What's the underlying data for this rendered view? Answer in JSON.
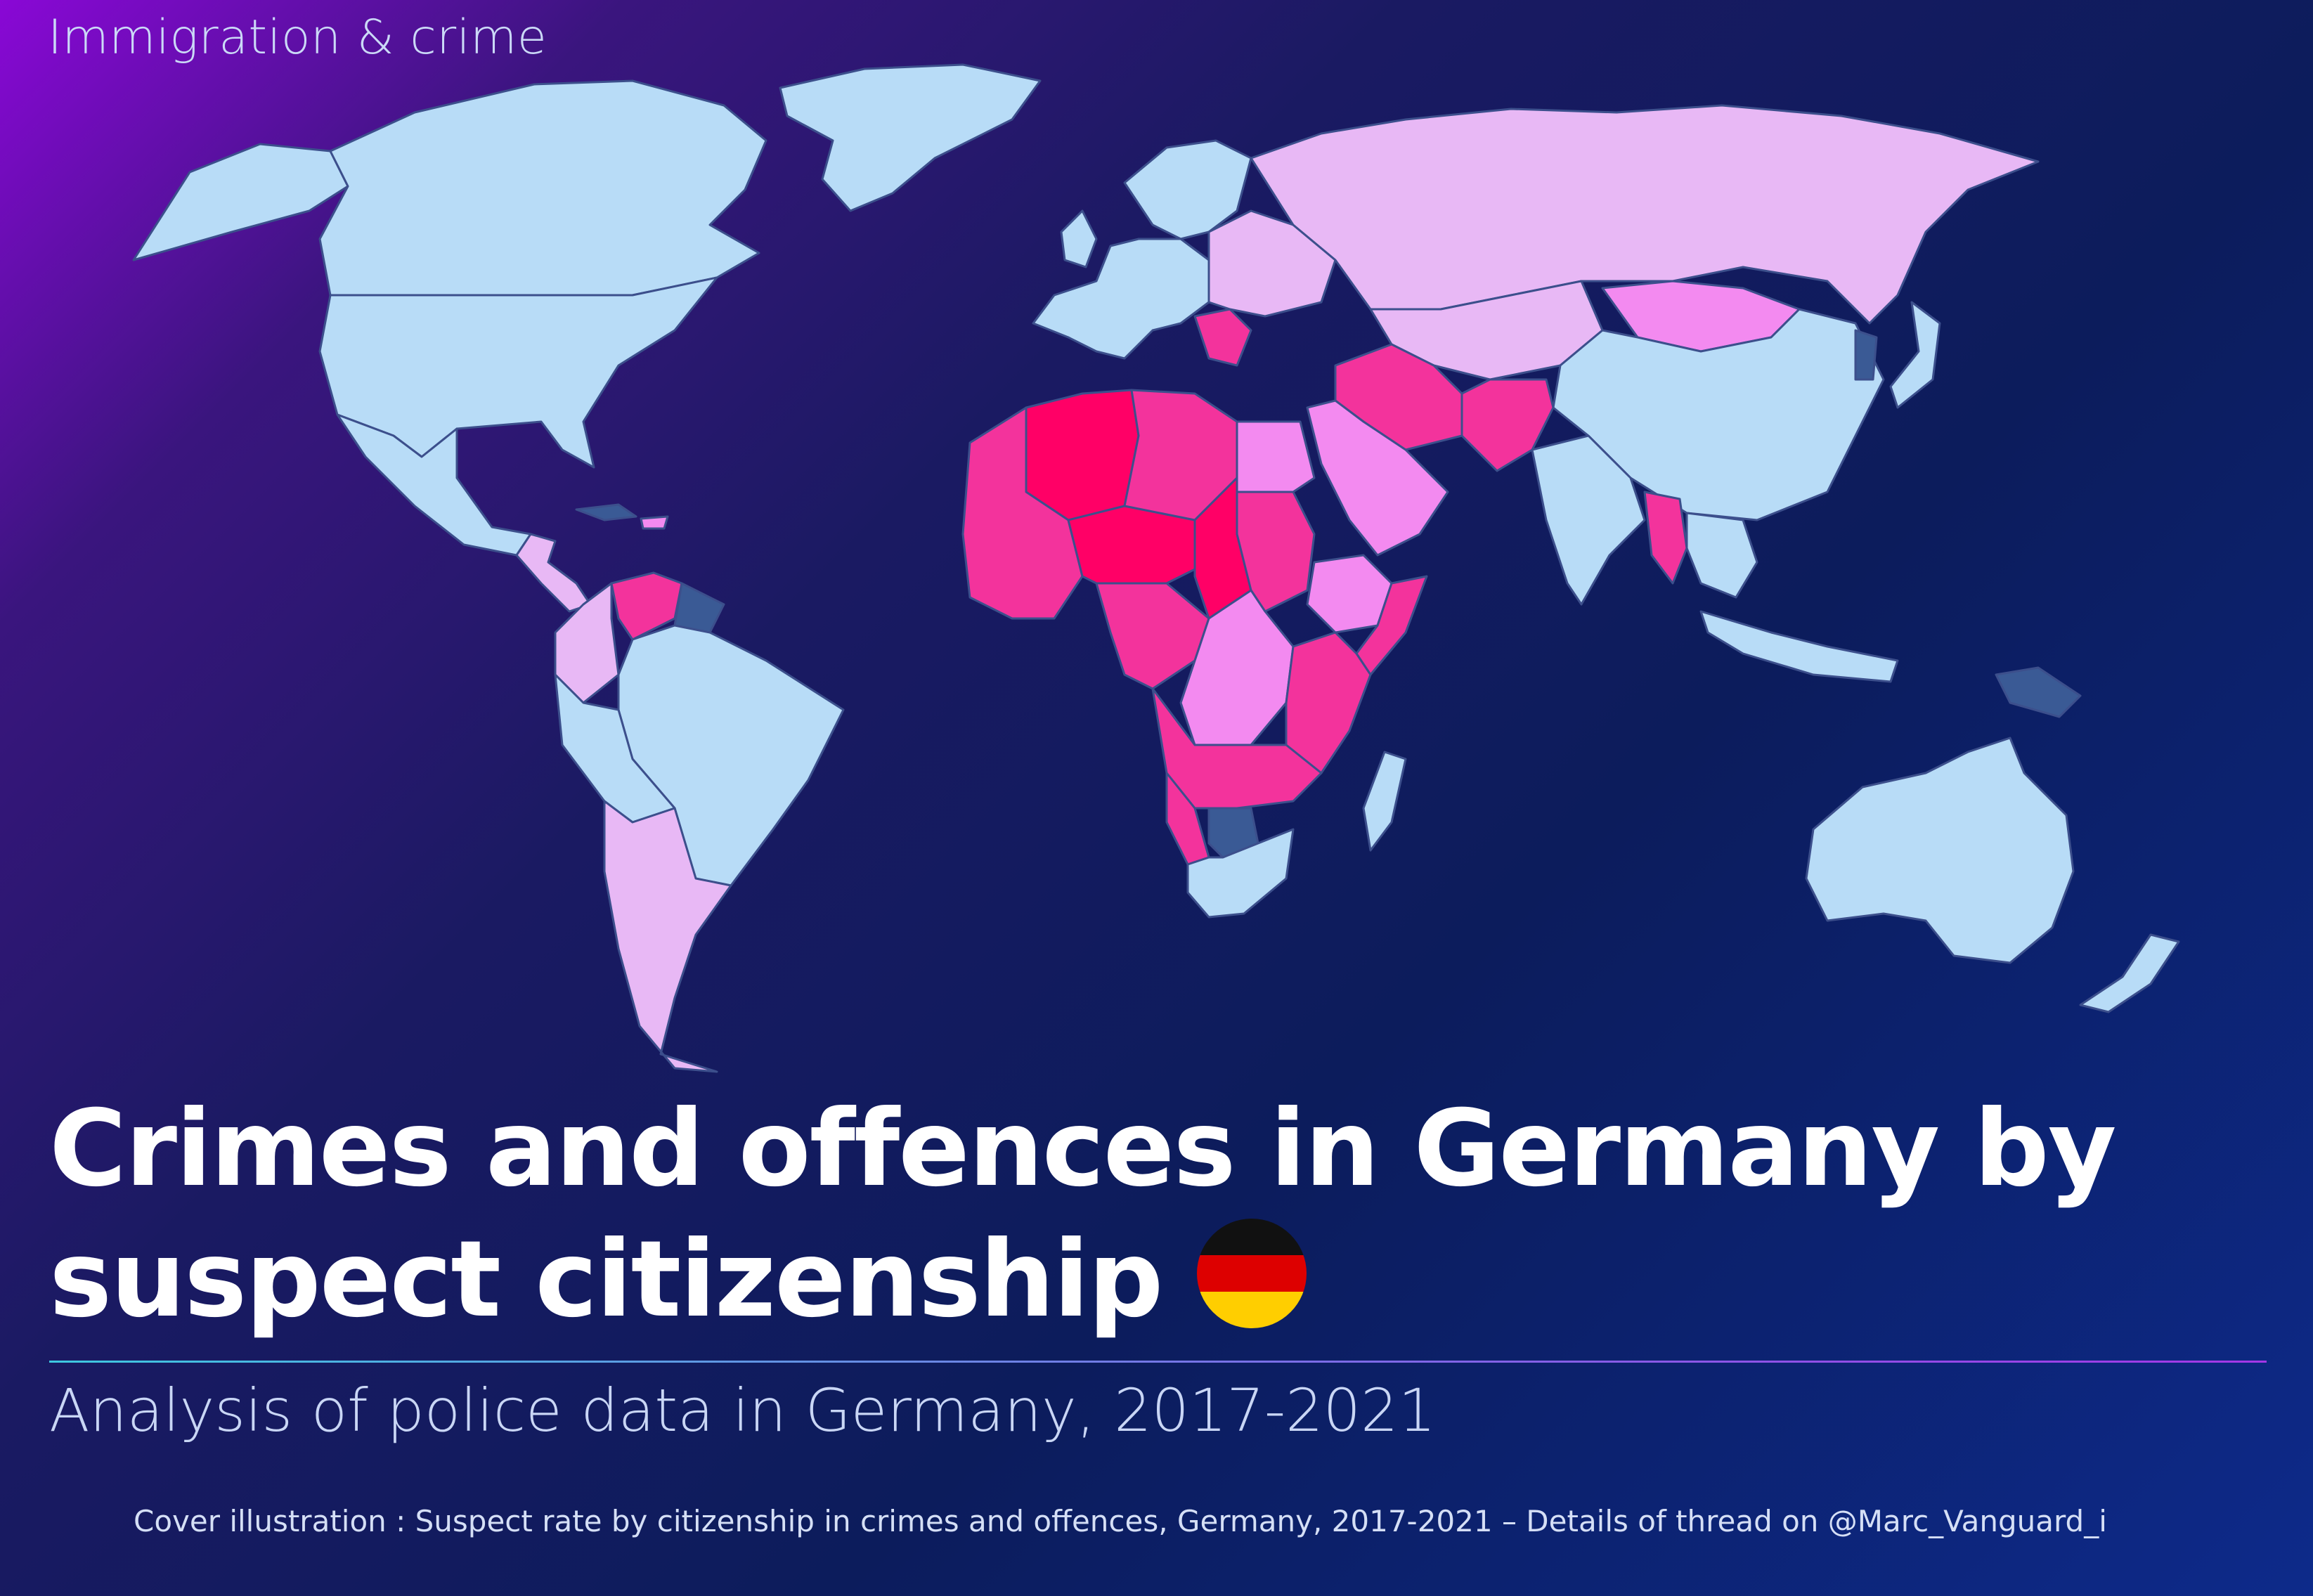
{
  "header": {
    "kicker": "Immigration & crime"
  },
  "title": {
    "line1": "Crimes and offences in Germany by",
    "line2": "suspect citizenship"
  },
  "subtitle": "Analysis of police data in Germany, 2017-2021",
  "caption": "Cover illustration : Suspect rate by citizenship in crimes and offences, Germany, 2017-2021 – Details of thread on @Marc_Vanguard_i",
  "flag": {
    "stripes": [
      "#111111",
      "#dd0000",
      "#ffce00"
    ]
  },
  "colors": {
    "lowest": "#3a5a95",
    "low": "#b8dcf7",
    "mid_low": "#e8b8f5",
    "mid": "#f38af0",
    "high": "#f3339c",
    "highest": "#ff0066",
    "ocean": "#0c1c5c"
  },
  "map_data": {
    "type": "choropleth",
    "classes": [
      "lowest",
      "low",
      "mid_low",
      "mid",
      "high",
      "highest"
    ],
    "regions": [
      {
        "name": "Greenland",
        "class": "low"
      },
      {
        "name": "Canada",
        "class": "low"
      },
      {
        "name": "Alaska",
        "class": "low"
      },
      {
        "name": "United States",
        "class": "low"
      },
      {
        "name": "Mexico",
        "class": "low"
      },
      {
        "name": "Central America",
        "class": "mid_low"
      },
      {
        "name": "Cuba",
        "class": "lowest"
      },
      {
        "name": "Hispaniola",
        "class": "mid"
      },
      {
        "name": "Colombia",
        "class": "mid_low"
      },
      {
        "name": "Venezuela",
        "class": "high"
      },
      {
        "name": "Guianas",
        "class": "lowest"
      },
      {
        "name": "Brazil",
        "class": "low"
      },
      {
        "name": "Peru / Bolivia",
        "class": "low"
      },
      {
        "name": "Argentina / Chile",
        "class": "mid_low"
      },
      {
        "name": "Western Europe",
        "class": "low"
      },
      {
        "name": "Scandinavia",
        "class": "low"
      },
      {
        "name": "Balkans",
        "class": "high"
      },
      {
        "name": "Eastern Europe",
        "class": "mid_low"
      },
      {
        "name": "Russia",
        "class": "mid_low"
      },
      {
        "name": "Mongolia",
        "class": "mid"
      },
      {
        "name": "China",
        "class": "low"
      },
      {
        "name": "Korea",
        "class": "lowest"
      },
      {
        "name": "Japan",
        "class": "low"
      },
      {
        "name": "Central Asia",
        "class": "mid_low"
      },
      {
        "name": "Iran / Iraq",
        "class": "high"
      },
      {
        "name": "Afghanistan / Pakistan",
        "class": "high"
      },
      {
        "name": "Arabian Peninsula",
        "class": "mid"
      },
      {
        "name": "India",
        "class": "low"
      },
      {
        "name": "Myanmar",
        "class": "high"
      },
      {
        "name": "Southeast Asia",
        "class": "low"
      },
      {
        "name": "Indonesia",
        "class": "low"
      },
      {
        "name": "Papua New Guinea",
        "class": "lowest"
      },
      {
        "name": "Australia",
        "class": "low"
      },
      {
        "name": "New Zealand",
        "class": "low"
      },
      {
        "name": "Algeria",
        "class": "highest"
      },
      {
        "name": "Libya",
        "class": "high"
      },
      {
        "name": "Egypt",
        "class": "mid"
      },
      {
        "name": "West Africa",
        "class": "high"
      },
      {
        "name": "Mali / Niger",
        "class": "highest"
      },
      {
        "name": "Chad",
        "class": "highest"
      },
      {
        "name": "Sudan",
        "class": "high"
      },
      {
        "name": "Ethiopia",
        "class": "mid"
      },
      {
        "name": "Somalia",
        "class": "high"
      },
      {
        "name": "Central Africa",
        "class": "high"
      },
      {
        "name": "DR Congo",
        "class": "mid"
      },
      {
        "name": "Angola / Zambia",
        "class": "high"
      },
      {
        "name": "East Africa",
        "class": "high"
      },
      {
        "name": "Namibia",
        "class": "high"
      },
      {
        "name": "Botswana",
        "class": "lowest"
      },
      {
        "name": "South Africa",
        "class": "low"
      },
      {
        "name": "Madagascar",
        "class": "low"
      }
    ]
  }
}
